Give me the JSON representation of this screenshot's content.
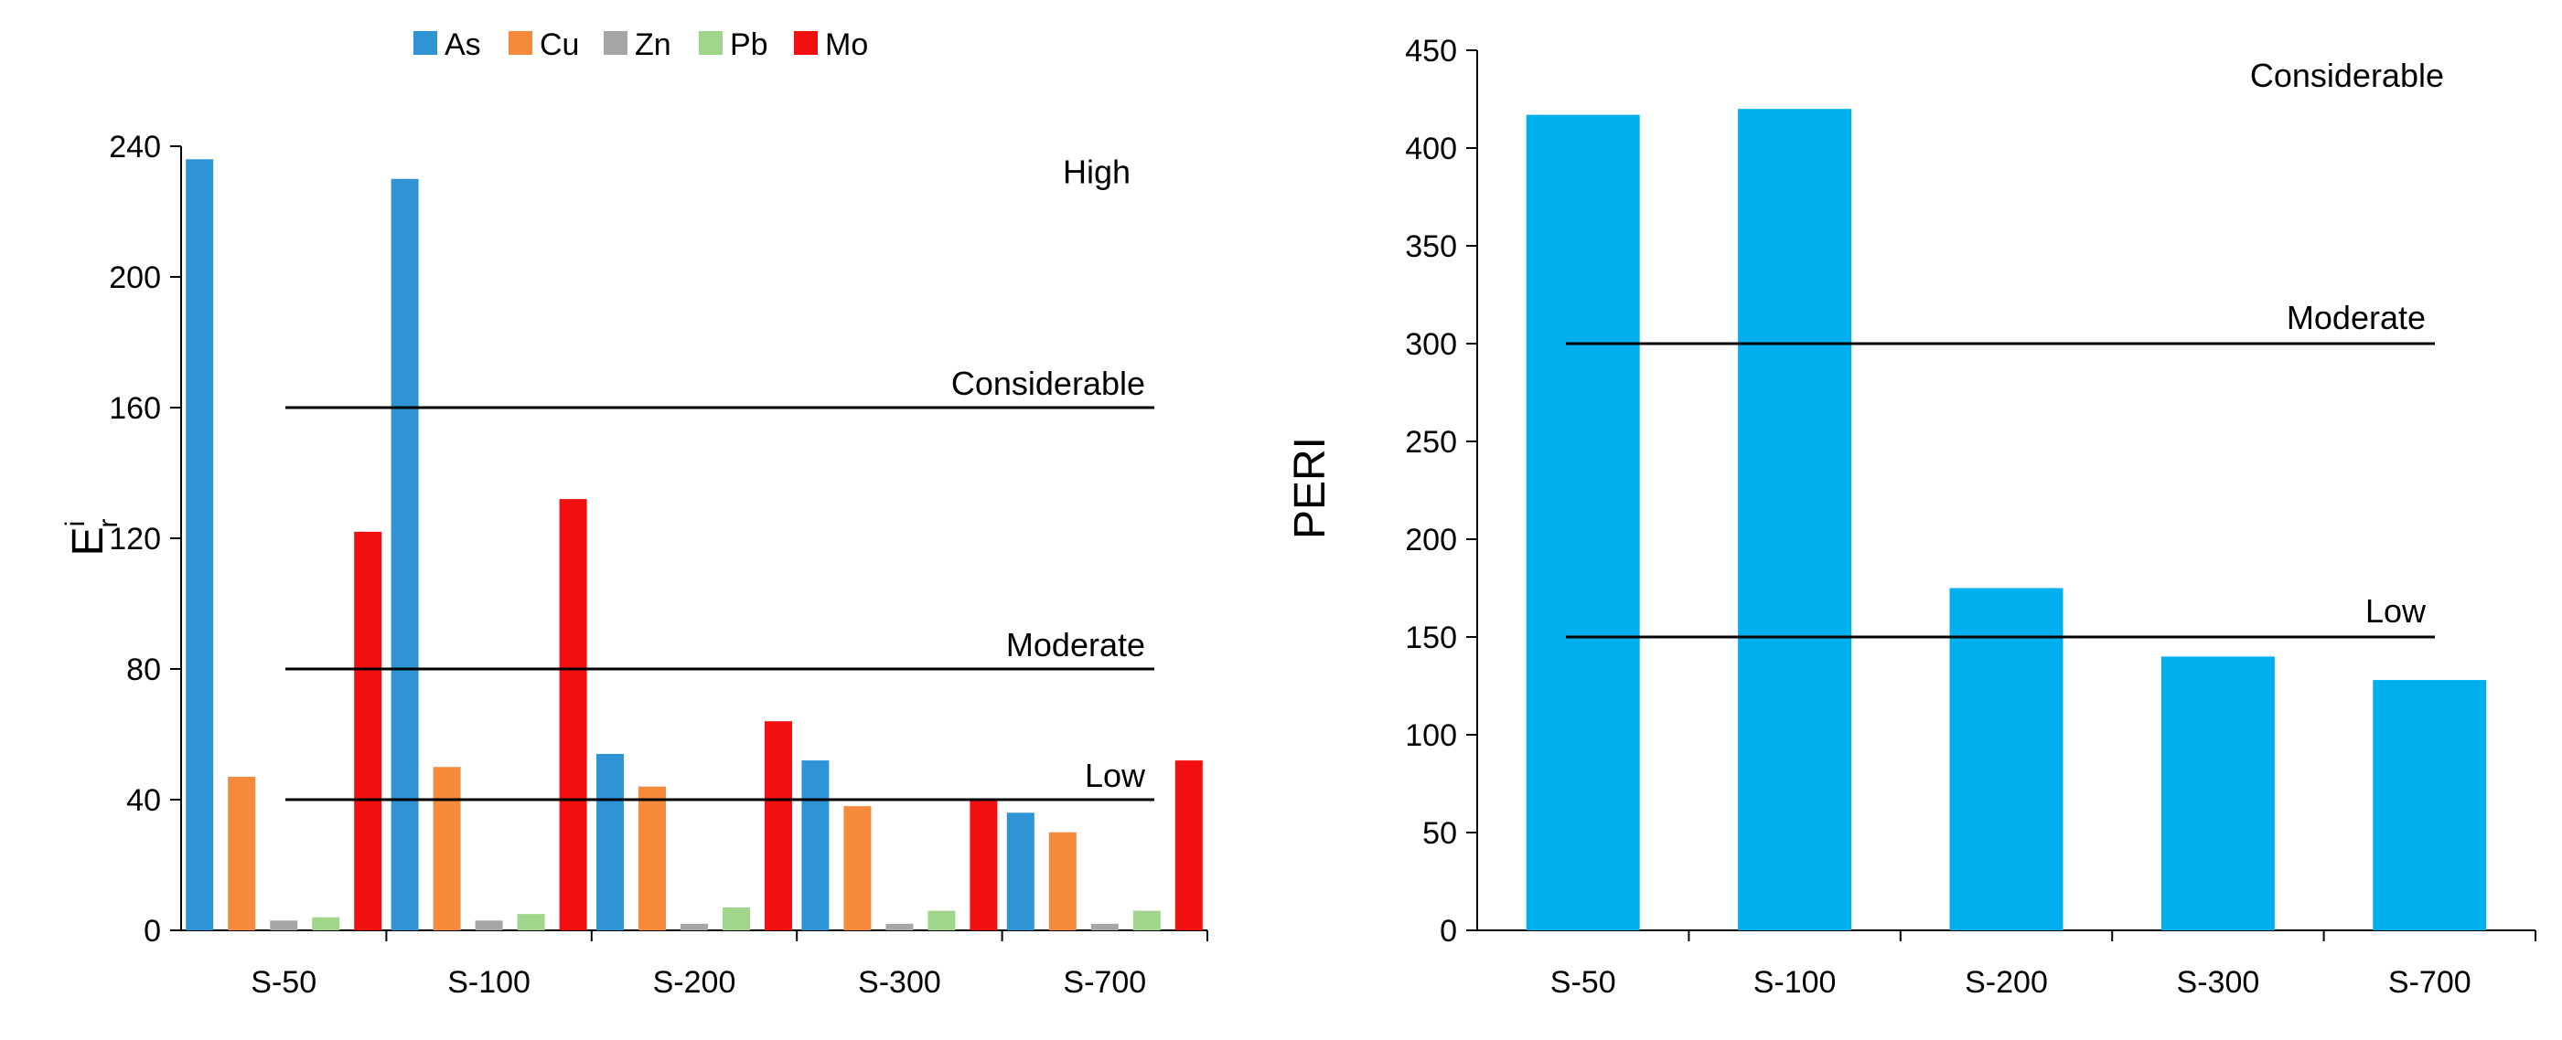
{
  "chart_data": [
    {
      "type": "bar",
      "ylabel_base": "E",
      "ylabel_sup": "i",
      "ylabel_sub": "r",
      "ylim": [
        0,
        240
      ],
      "yticks": [
        "0",
        "40",
        "80",
        "120",
        "160",
        "200",
        "240"
      ],
      "categories": [
        "S-50",
        "S-100",
        "S-200",
        "S-300",
        "S-700"
      ],
      "series": [
        {
          "name": "As",
          "color": "#2E94D4",
          "values": [
            236,
            230,
            54,
            52,
            36
          ]
        },
        {
          "name": "Cu",
          "color": "#F58A3C",
          "values": [
            47,
            50,
            44,
            38,
            30
          ]
        },
        {
          "name": "Zn",
          "color": "#A6A6A6",
          "values": [
            3,
            3,
            2,
            2,
            2
          ]
        },
        {
          "name": "Pb",
          "color": "#9FD68C",
          "values": [
            4,
            5,
            7,
            6,
            6
          ]
        },
        {
          "name": "Mo",
          "color": "#F20F0F",
          "values": [
            122,
            132,
            64,
            40,
            52
          ]
        }
      ],
      "reference_lines": [
        {
          "value": 160,
          "label": "Considerable"
        },
        {
          "value": 80,
          "label": "Moderate"
        },
        {
          "value": 40,
          "label": "Low"
        }
      ],
      "annotations": [
        {
          "label": "High",
          "value": 232
        }
      ]
    },
    {
      "type": "bar",
      "ylabel": "PERI",
      "ylim": [
        0,
        450
      ],
      "yticks": [
        "0",
        "50",
        "100",
        "150",
        "200",
        "250",
        "300",
        "350",
        "400",
        "450"
      ],
      "categories": [
        "S-50",
        "S-100",
        "S-200",
        "S-300",
        "S-700"
      ],
      "series": [
        {
          "name": "PERI",
          "color": "#00B0EE",
          "values": [
            417,
            420,
            175,
            140,
            128
          ]
        }
      ],
      "reference_lines": [
        {
          "value": 300,
          "label": "Moderate"
        },
        {
          "value": 150,
          "label": "Low"
        }
      ],
      "annotations": [
        {
          "label": "Considerable",
          "value": 437
        }
      ]
    }
  ]
}
